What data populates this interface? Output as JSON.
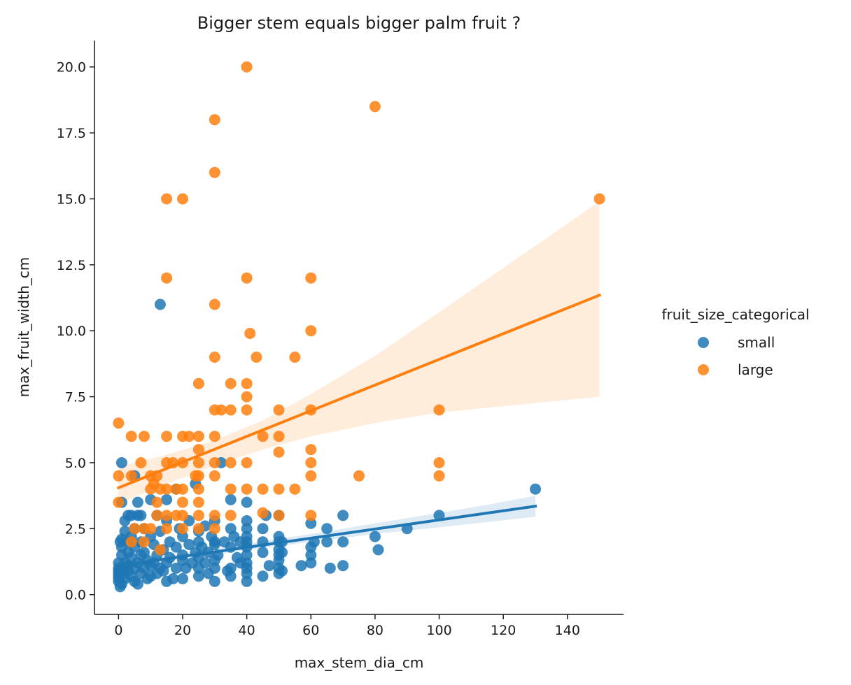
{
  "chart_data": {
    "type": "scatter",
    "title": "Bigger stem equals bigger palm fruit ?",
    "xlabel": "max_stem_dia_cm",
    "ylabel": "max_fruit_width_cm",
    "xlim": [
      -7.5,
      157.5
    ],
    "ylim": [
      -0.75,
      21.0
    ],
    "xticks": [
      0,
      20,
      40,
      60,
      80,
      100,
      120,
      140
    ],
    "yticks": [
      0.0,
      2.5,
      5.0,
      7.5,
      10.0,
      12.5,
      15.0,
      17.5,
      20.0
    ],
    "grid": false,
    "legend": {
      "title": "fruit_size_categorical",
      "placement": "right"
    },
    "series": [
      {
        "name": "small",
        "color": "#1f77b4",
        "points": [
          [
            0,
            1.2
          ],
          [
            0,
            0.5
          ],
          [
            0,
            0.6
          ],
          [
            0,
            0.8
          ],
          [
            0,
            0.9
          ],
          [
            0,
            1.0
          ],
          [
            0,
            0.7
          ],
          [
            0.5,
            0.3
          ],
          [
            0.5,
            2.0
          ],
          [
            1,
            1.5
          ],
          [
            1,
            2.1
          ],
          [
            1,
            5.0
          ],
          [
            1,
            3.5
          ],
          [
            1,
            0.4
          ],
          [
            1,
            1.8
          ],
          [
            1.5,
            0.8
          ],
          [
            2,
            1.0
          ],
          [
            2,
            2.4
          ],
          [
            2,
            2.8
          ],
          [
            2,
            1.2
          ],
          [
            2,
            0.6
          ],
          [
            3,
            1.6
          ],
          [
            3,
            3.0
          ],
          [
            3,
            2.0
          ],
          [
            3,
            0.9
          ],
          [
            3,
            1.1
          ],
          [
            4,
            1.4
          ],
          [
            4,
            0.7
          ],
          [
            4,
            2.2
          ],
          [
            4,
            3.0
          ],
          [
            5,
            1.0
          ],
          [
            5,
            4.5
          ],
          [
            5,
            1.8
          ],
          [
            5,
            2.5
          ],
          [
            5,
            0.5
          ],
          [
            6,
            3.0
          ],
          [
            6,
            1.2
          ],
          [
            6,
            0.4
          ],
          [
            6,
            3.5
          ],
          [
            7,
            1.5
          ],
          [
            7,
            2.0
          ],
          [
            7,
            0.8
          ],
          [
            7,
            3.0
          ],
          [
            8,
            1.0
          ],
          [
            8,
            2.5
          ],
          [
            8,
            1.6
          ],
          [
            9,
            0.6
          ],
          [
            9,
            1.3
          ],
          [
            10,
            1.1
          ],
          [
            10,
            3.6
          ],
          [
            10,
            2.2
          ],
          [
            10,
            0.7
          ],
          [
            11,
            1.9
          ],
          [
            11,
            1.2
          ],
          [
            12,
            3.0
          ],
          [
            12,
            0.8
          ],
          [
            12,
            1.5
          ],
          [
            13,
            11.0
          ],
          [
            13,
            2.4
          ],
          [
            13,
            1.0
          ],
          [
            14,
            0.9
          ],
          [
            14,
            1.7
          ],
          [
            15,
            3.6
          ],
          [
            15,
            2.8
          ],
          [
            15,
            1.2
          ],
          [
            15,
            0.5
          ],
          [
            16,
            1.4
          ],
          [
            16,
            2.0
          ],
          [
            17,
            0.6
          ],
          [
            18,
            4.0
          ],
          [
            18,
            1.0
          ],
          [
            18,
            1.8
          ],
          [
            19,
            2.5
          ],
          [
            20,
            1.3
          ],
          [
            20,
            2.2
          ],
          [
            20,
            0.6
          ],
          [
            20,
            1.5
          ],
          [
            21,
            1.0
          ],
          [
            22,
            2.8
          ],
          [
            22,
            1.9
          ],
          [
            23,
            1.2
          ],
          [
            24,
            4.2
          ],
          [
            24,
            1.6
          ],
          [
            25,
            2.0
          ],
          [
            25,
            1.0
          ],
          [
            25,
            0.7
          ],
          [
            25,
            1.4
          ],
          [
            25,
            2.4
          ],
          [
            26,
            1.8
          ],
          [
            27,
            2.6
          ],
          [
            27,
            1.2
          ],
          [
            28,
            0.8
          ],
          [
            28,
            1.6
          ],
          [
            29,
            2.2
          ],
          [
            30,
            1.9
          ],
          [
            30,
            0.5
          ],
          [
            30,
            1.0
          ],
          [
            30,
            2.0
          ],
          [
            30,
            1.3
          ],
          [
            30,
            2.8
          ],
          [
            31,
            1.5
          ],
          [
            32,
            5.0
          ],
          [
            33,
            2.0
          ],
          [
            34,
            0.9
          ],
          [
            35,
            3.6
          ],
          [
            35,
            2.5
          ],
          [
            35,
            1.8
          ],
          [
            35,
            1.0
          ],
          [
            35,
            0.7
          ],
          [
            36,
            2.2
          ],
          [
            37,
            1.4
          ],
          [
            38,
            2.0
          ],
          [
            38,
            1.2
          ],
          [
            40,
            3.5
          ],
          [
            40,
            2.8
          ],
          [
            40,
            2.5
          ],
          [
            40,
            2.2
          ],
          [
            40,
            1.8
          ],
          [
            40,
            1.5
          ],
          [
            40,
            1.2
          ],
          [
            40,
            1.0
          ],
          [
            40,
            0.8
          ],
          [
            40,
            0.5
          ],
          [
            40,
            2.0
          ],
          [
            45,
            2.5
          ],
          [
            45,
            2.0
          ],
          [
            45,
            1.6
          ],
          [
            45,
            0.7
          ],
          [
            46,
            3.0
          ],
          [
            47,
            1.1
          ],
          [
            50,
            2.2
          ],
          [
            50,
            2.0
          ],
          [
            50,
            1.7
          ],
          [
            50,
            1.5
          ],
          [
            50,
            1.3
          ],
          [
            50,
            1.0
          ],
          [
            50,
            0.8
          ],
          [
            50,
            3.0
          ],
          [
            51,
            0.9
          ],
          [
            51,
            1.6
          ],
          [
            51,
            2.0
          ],
          [
            57,
            1.1
          ],
          [
            60,
            2.7
          ],
          [
            60,
            1.8
          ],
          [
            60,
            1.5
          ],
          [
            61,
            2.0
          ],
          [
            60,
            1.2
          ],
          [
            65,
            2.5
          ],
          [
            65,
            2.0
          ],
          [
            66,
            1.0
          ],
          [
            70,
            3.0
          ],
          [
            70,
            2.0
          ],
          [
            70,
            1.1
          ],
          [
            80,
            2.2
          ],
          [
            81,
            1.7
          ],
          [
            90,
            2.5
          ],
          [
            100,
            3.0
          ],
          [
            130,
            4.0
          ]
        ],
        "fit": {
          "x": [
            0,
            130
          ],
          "y": [
            1.1,
            3.35
          ]
        },
        "band": {
          "x": [
            0,
            20,
            40,
            60,
            80,
            100,
            115,
            130
          ],
          "low": [
            0.95,
            1.35,
            1.68,
            2.0,
            2.3,
            2.55,
            2.75,
            2.95
          ],
          "high": [
            1.25,
            1.55,
            1.92,
            2.3,
            2.7,
            3.1,
            3.4,
            3.75
          ]
        }
      },
      {
        "name": "large",
        "color": "#ff7f0e",
        "points": [
          [
            0,
            6.5
          ],
          [
            0,
            4.5
          ],
          [
            0,
            3.5
          ],
          [
            4,
            2.0
          ],
          [
            4,
            6.0
          ],
          [
            4,
            4.5
          ],
          [
            5,
            2.5
          ],
          [
            7,
            5.0
          ],
          [
            8,
            6.0
          ],
          [
            8,
            2.5
          ],
          [
            8,
            2.0
          ],
          [
            10,
            2.5
          ],
          [
            10,
            4.5
          ],
          [
            10,
            4.0
          ],
          [
            11,
            4.2
          ],
          [
            12,
            3.0
          ],
          [
            12,
            4.5
          ],
          [
            12,
            3.5
          ],
          [
            13,
            1.7
          ],
          [
            13,
            4.0
          ],
          [
            15,
            15.0
          ],
          [
            15,
            12.0
          ],
          [
            15,
            6.0
          ],
          [
            15,
            5.0
          ],
          [
            15,
            4.0
          ],
          [
            15,
            3.0
          ],
          [
            15,
            2.5
          ],
          [
            17,
            5.0
          ],
          [
            18,
            3.0
          ],
          [
            18,
            4.0
          ],
          [
            20,
            15.0
          ],
          [
            20,
            6.0
          ],
          [
            20,
            5.0
          ],
          [
            20,
            4.0
          ],
          [
            20,
            3.5
          ],
          [
            20,
            3.0
          ],
          [
            20,
            2.5
          ],
          [
            22,
            6.0
          ],
          [
            24,
            4.5
          ],
          [
            25,
            8.0
          ],
          [
            25,
            6.0
          ],
          [
            25,
            5.5
          ],
          [
            25,
            5.0
          ],
          [
            25,
            4.5
          ],
          [
            25,
            4.0
          ],
          [
            25,
            3.5
          ],
          [
            25,
            3.0
          ],
          [
            25,
            2.5
          ],
          [
            30,
            18.0
          ],
          [
            30,
            16.0
          ],
          [
            30,
            11.0
          ],
          [
            30,
            9.0
          ],
          [
            30,
            7.0
          ],
          [
            30,
            6.0
          ],
          [
            30,
            5.0
          ],
          [
            30,
            4.5
          ],
          [
            30,
            3.0
          ],
          [
            30,
            2.5
          ],
          [
            32,
            7.0
          ],
          [
            35,
            8.0
          ],
          [
            35,
            7.0
          ],
          [
            35,
            5.0
          ],
          [
            35,
            4.0
          ],
          [
            35,
            3.0
          ],
          [
            40,
            20.0
          ],
          [
            40,
            12.0
          ],
          [
            40,
            8.0
          ],
          [
            40,
            7.5
          ],
          [
            40,
            7.0
          ],
          [
            40,
            5.0
          ],
          [
            40,
            4.0
          ],
          [
            41,
            9.9
          ],
          [
            43,
            9.0
          ],
          [
            45,
            6.0
          ],
          [
            45,
            4.0
          ],
          [
            45,
            3.1
          ],
          [
            50,
            7.0
          ],
          [
            50,
            6.0
          ],
          [
            50,
            5.4
          ],
          [
            50,
            4.0
          ],
          [
            50,
            3.0
          ],
          [
            55,
            9.0
          ],
          [
            55,
            4.0
          ],
          [
            60,
            12.0
          ],
          [
            60,
            10.0
          ],
          [
            60,
            7.0
          ],
          [
            60,
            5.5
          ],
          [
            60,
            5.0
          ],
          [
            60,
            4.5
          ],
          [
            60,
            3.0
          ],
          [
            75,
            4.5
          ],
          [
            80,
            18.5
          ],
          [
            100,
            7.0
          ],
          [
            100,
            5.0
          ],
          [
            100,
            4.5
          ],
          [
            150,
            15.0
          ]
        ],
        "fit": {
          "x": [
            0,
            150
          ],
          "y": [
            4.05,
            11.35
          ]
        },
        "band": {
          "x": [
            0,
            15,
            30,
            45,
            60,
            80,
            100,
            125,
            150
          ],
          "low": [
            3.45,
            4.2,
            4.9,
            5.5,
            6.0,
            6.5,
            6.9,
            7.2,
            7.5
          ],
          "high": [
            4.85,
            5.3,
            5.85,
            6.6,
            7.6,
            9.05,
            10.7,
            12.8,
            14.9
          ]
        }
      }
    ]
  }
}
